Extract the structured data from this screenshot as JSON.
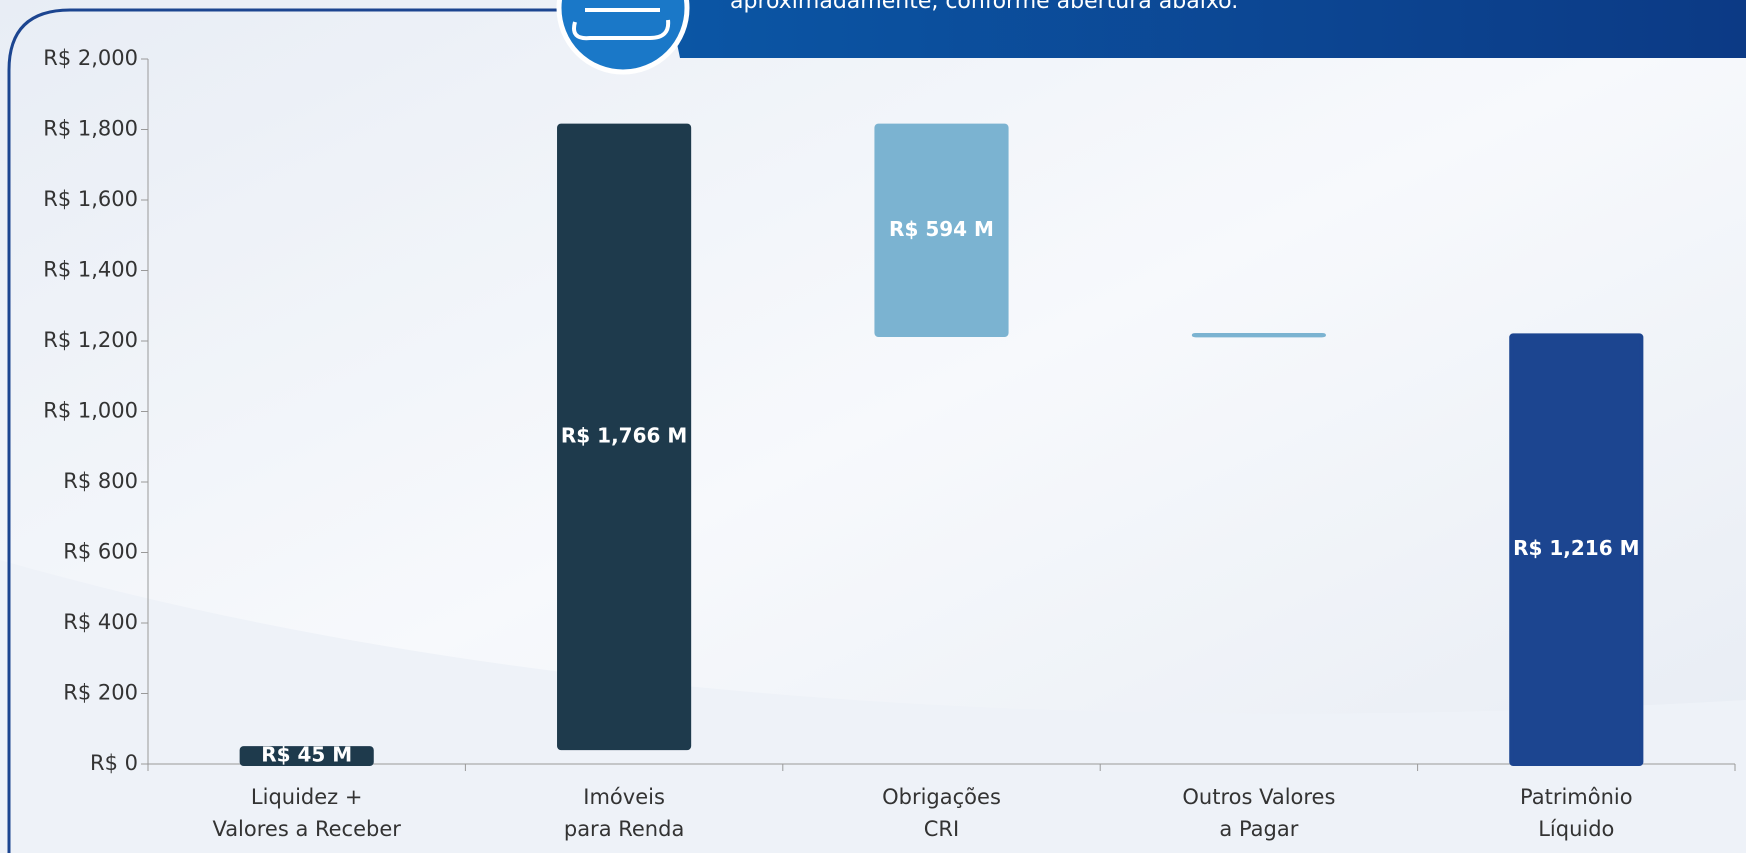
{
  "banner": {
    "text": "aproximadamente, conforme abertura abaixo."
  },
  "chart_data": {
    "type": "waterfall",
    "categories": [
      [
        "Liquidez +",
        "Valores a Receber"
      ],
      [
        "Imóveis",
        "para Renda"
      ],
      [
        "Obrigações",
        "CRI"
      ],
      [
        "Outros Valores",
        "a Pagar"
      ],
      [
        "Patrimônio",
        "Líquido"
      ]
    ],
    "values": [
      45,
      1766,
      594,
      1,
      1216
    ],
    "value_labels": [
      "R$ 45 M",
      "R$ 1,766 M",
      "R$ 594 M",
      null,
      "R$ 1,216 M"
    ],
    "steps": [
      "start",
      "increase",
      "decrease",
      "decrease",
      "total"
    ],
    "colors": [
      "#1e3a4c",
      "#1e3a4c",
      "#7bb3d1",
      "#7bb3d1",
      "#1c4590"
    ],
    "ylim": [
      0,
      2000
    ],
    "yticks": [
      {
        "value": 0,
        "label": "R$ 0"
      },
      {
        "value": 200,
        "label": "R$ 200"
      },
      {
        "value": 400,
        "label": "R$ 400"
      },
      {
        "value": 600,
        "label": "R$ 600"
      },
      {
        "value": 800,
        "label": "R$ 800"
      },
      {
        "value": 1000,
        "label": "R$ 1,000"
      },
      {
        "value": 1200,
        "label": "R$ 1,200"
      },
      {
        "value": 1400,
        "label": "R$ 1,400"
      },
      {
        "value": 1600,
        "label": "R$ 1,600"
      },
      {
        "value": 1800,
        "label": "R$ 1,800"
      },
      {
        "value": 2000,
        "label": "R$ 2,000"
      }
    ]
  }
}
